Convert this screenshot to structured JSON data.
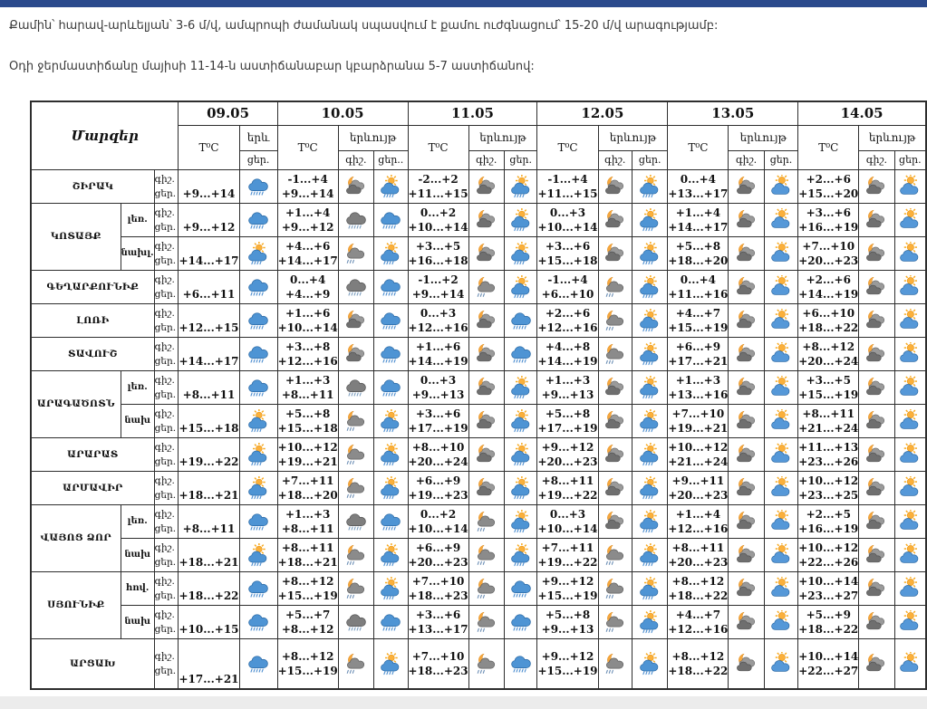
{
  "colors": {
    "top_bar": "#2b4a8c",
    "table_border": "#2e2e2e",
    "text": "#3a3a3a",
    "bottom_strip": "#ececec"
  },
  "intro": {
    "line1": "Քամին՝ հարավ-արևելյան՝ 3-6 մ/վ, ամպրոպի ժամանակ սպասվում է քամու ուժգնացում՝ 15-20 մ/վ արագությամբ:",
    "line2": "Օդի ջերմաստիճանը մայիսի 11-14-ն աստիճանաբար կբարձրանա 5-7 աստիճանով:"
  },
  "header": {
    "corner": "Մարզեր",
    "temp": "T⁰C",
    "phenomenon": "երևույթ",
    "phenomenon_short": "երև",
    "night": "գիշ.",
    "day": "ցեր.",
    "day_dotted": "ցեր..",
    "row_night": "գիշ.",
    "row_day": "ցեր."
  },
  "dates": [
    "09.05",
    "10.05",
    "11.05",
    "12.05",
    "13.05",
    "14.05"
  ],
  "icon_legend": {
    "rain": "blue cloud with rain",
    "dark-rain": "dark grey cloud with rain",
    "moon-cloud": "moon behind dark clouds",
    "moon-cloud-rain": "moon behind dark cloud with rain",
    "sun-rain-cloud": "sun behind cloud with rain",
    "sun-cloud": "sun behind cloud (partly cloudy)"
  },
  "regions": [
    {
      "name": "ՇԻՐԱԿ",
      "rows": [
        {
          "sub": "",
          "first": {
            "t": "+9...+14",
            "icon": "rain"
          },
          "days": [
            {
              "tn": "-1...+4",
              "td": "+9...+14",
              "ni": "moon-cloud",
              "di": "sun-rain-cloud"
            },
            {
              "tn": "-2...+2",
              "td": "+11...+15",
              "ni": "moon-cloud",
              "di": "sun-rain-cloud"
            },
            {
              "tn": "-1...+4",
              "td": "+11...+15",
              "ni": "moon-cloud",
              "di": "sun-rain-cloud"
            },
            {
              "tn": "0...+4",
              "td": "+13...+17",
              "ni": "moon-cloud",
              "di": "sun-cloud"
            },
            {
              "tn": "+2...+6",
              "td": "+15...+20",
              "ni": "moon-cloud",
              "di": "sun-cloud"
            }
          ]
        }
      ]
    },
    {
      "name": "ԿՈՏԱՅՔ",
      "rows": [
        {
          "sub": "լեռ.",
          "first": {
            "t": "+9...+12",
            "icon": "rain"
          },
          "days": [
            {
              "tn": "+1...+4",
              "td": "+9...+12",
              "ni": "dark-rain",
              "di": "rain"
            },
            {
              "tn": "0...+2",
              "td": "+10...+14",
              "ni": "moon-cloud",
              "di": "sun-rain-cloud"
            },
            {
              "tn": "0...+3",
              "td": "+10...+14",
              "ni": "moon-cloud",
              "di": "sun-rain-cloud"
            },
            {
              "tn": "+1...+4",
              "td": "+14...+17",
              "ni": "moon-cloud",
              "di": "sun-cloud"
            },
            {
              "tn": "+3...+6",
              "td": "+16...+19",
              "ni": "moon-cloud",
              "di": "sun-cloud"
            }
          ]
        },
        {
          "sub": "նախլ.",
          "first": {
            "t": "+14...+17",
            "icon": "sun-rain-cloud"
          },
          "days": [
            {
              "tn": "+4...+6",
              "td": "+14...+17",
              "ni": "moon-cloud-rain",
              "di": "sun-rain-cloud"
            },
            {
              "tn": "+3...+5",
              "td": "+16...+18",
              "ni": "moon-cloud",
              "di": "sun-rain-cloud"
            },
            {
              "tn": "+3...+6",
              "td": "+15...+18",
              "ni": "moon-cloud",
              "di": "sun-rain-cloud"
            },
            {
              "tn": "+5...+8",
              "td": "+18...+20",
              "ni": "moon-cloud",
              "di": "sun-cloud"
            },
            {
              "tn": "+7...+10",
              "td": "+20...+23",
              "ni": "moon-cloud",
              "di": "sun-cloud"
            }
          ]
        }
      ]
    },
    {
      "name": "ԳԵՂԱՐՔՈՒՆԻՔ",
      "rows": [
        {
          "sub": "",
          "first": {
            "t": "+6...+11",
            "icon": "rain"
          },
          "days": [
            {
              "tn": "0...+4",
              "td": "+4...+9",
              "ni": "dark-rain",
              "di": "rain"
            },
            {
              "tn": "-1...+2",
              "td": "+9...+14",
              "ni": "moon-cloud-rain",
              "di": "sun-rain-cloud"
            },
            {
              "tn": "-1...+4",
              "td": "+6...+10",
              "ni": "moon-cloud-rain",
              "di": "sun-rain-cloud"
            },
            {
              "tn": "0...+4",
              "td": "+11...+16",
              "ni": "moon-cloud",
              "di": "sun-cloud"
            },
            {
              "tn": "+2...+6",
              "td": "+14...+19",
              "ni": "moon-cloud",
              "di": "sun-cloud"
            }
          ]
        }
      ]
    },
    {
      "name": "ԼՈՌԻ",
      "rows": [
        {
          "sub": "",
          "first": {
            "t": "+12...+15",
            "icon": "rain"
          },
          "days": [
            {
              "tn": "+1...+6",
              "td": "+10...+14",
              "ni": "moon-cloud",
              "di": "rain"
            },
            {
              "tn": "0...+3",
              "td": "+12...+16",
              "ni": "moon-cloud",
              "di": "rain"
            },
            {
              "tn": "+2...+6",
              "td": "+12...+16",
              "ni": "moon-cloud-rain",
              "di": "sun-rain-cloud"
            },
            {
              "tn": "+4...+7",
              "td": "+15...+19",
              "ni": "moon-cloud",
              "di": "sun-cloud"
            },
            {
              "tn": "+6...+10",
              "td": "+18...+22",
              "ni": "moon-cloud",
              "di": "sun-cloud"
            }
          ]
        }
      ]
    },
    {
      "name": "ՏԱՎՈՒՇ",
      "rows": [
        {
          "sub": "",
          "first": {
            "t": "+14...+17",
            "icon": "rain"
          },
          "days": [
            {
              "tn": "+3...+8",
              "td": "+12...+16",
              "ni": "moon-cloud",
              "di": "rain"
            },
            {
              "tn": "+1...+6",
              "td": "+14...+19",
              "ni": "moon-cloud",
              "di": "rain"
            },
            {
              "tn": "+4...+8",
              "td": "+14...+19",
              "ni": "moon-cloud-rain",
              "di": "sun-rain-cloud"
            },
            {
              "tn": "+6...+9",
              "td": "+17...+21",
              "ni": "moon-cloud",
              "di": "sun-cloud"
            },
            {
              "tn": "+8...+12",
              "td": "+20...+24",
              "ni": "moon-cloud",
              "di": "sun-cloud"
            }
          ]
        }
      ]
    },
    {
      "name": "ԱՐԱԳԱԾՈՏՆ",
      "rows": [
        {
          "sub": "լեռ.",
          "first": {
            "t": "+8...+11",
            "icon": "rain"
          },
          "days": [
            {
              "tn": "+1...+3",
              "td": "+8...+11",
              "ni": "dark-rain",
              "di": "rain"
            },
            {
              "tn": "0...+3",
              "td": "+9...+13",
              "ni": "moon-cloud",
              "di": "sun-rain-cloud"
            },
            {
              "tn": "+1...+3",
              "td": "+9...+13",
              "ni": "moon-cloud",
              "di": "sun-rain-cloud"
            },
            {
              "tn": "+1...+3",
              "td": "+13...+16",
              "ni": "moon-cloud",
              "di": "sun-cloud"
            },
            {
              "tn": "+3...+5",
              "td": "+15...+19",
              "ni": "moon-cloud",
              "di": "sun-cloud"
            }
          ]
        },
        {
          "sub": "նախ",
          "first": {
            "t": "+15...+18",
            "icon": "sun-rain-cloud"
          },
          "days": [
            {
              "tn": "+5...+8",
              "td": "+15...+18",
              "ni": "moon-cloud-rain",
              "di": "sun-rain-cloud"
            },
            {
              "tn": "+3...+6",
              "td": "+17...+19",
              "ni": "moon-cloud",
              "di": "sun-rain-cloud"
            },
            {
              "tn": "+5...+8",
              "td": "+17...+19",
              "ni": "moon-cloud",
              "di": "sun-rain-cloud"
            },
            {
              "tn": "+7...+10",
              "td": "+19...+21",
              "ni": "moon-cloud",
              "di": "sun-cloud"
            },
            {
              "tn": "+8...+11",
              "td": "+21...+24",
              "ni": "moon-cloud",
              "di": "sun-cloud"
            }
          ]
        }
      ]
    },
    {
      "name": "ԱՐԱՐԱՏ",
      "rows": [
        {
          "sub": "",
          "first": {
            "t": "+19...+22",
            "icon": "sun-rain-cloud"
          },
          "days": [
            {
              "tn": "+10...+12",
              "td": "+19...+21",
              "ni": "moon-cloud-rain",
              "di": "sun-rain-cloud"
            },
            {
              "tn": "+8...+10",
              "td": "+20...+24",
              "ni": "moon-cloud",
              "di": "sun-rain-cloud"
            },
            {
              "tn": "+9...+12",
              "td": "+20...+23",
              "ni": "moon-cloud",
              "di": "sun-rain-cloud"
            },
            {
              "tn": "+10...+12",
              "td": "+21...+24",
              "ni": "moon-cloud",
              "di": "sun-cloud"
            },
            {
              "tn": "+11...+13",
              "td": "+23...+26",
              "ni": "moon-cloud",
              "di": "sun-cloud"
            }
          ]
        }
      ]
    },
    {
      "name": "ԱՐՄԱՎԻՐ",
      "rows": [
        {
          "sub": "",
          "first": {
            "t": "+18...+21",
            "icon": "sun-rain-cloud"
          },
          "days": [
            {
              "tn": "+7...+11",
              "td": "+18...+20",
              "ni": "moon-cloud-rain",
              "di": "sun-rain-cloud"
            },
            {
              "tn": "+6...+9",
              "td": "+19...+23",
              "ni": "moon-cloud",
              "di": "sun-rain-cloud"
            },
            {
              "tn": "+8...+11",
              "td": "+19...+22",
              "ni": "moon-cloud",
              "di": "sun-rain-cloud"
            },
            {
              "tn": "+9...+11",
              "td": "+20...+23",
              "ni": "moon-cloud",
              "di": "sun-cloud"
            },
            {
              "tn": "+10...+12",
              "td": "+23...+25",
              "ni": "moon-cloud",
              "di": "sun-cloud"
            }
          ]
        }
      ]
    },
    {
      "name": "ՎԱՅՈՑ ՁՈՐ",
      "rows": [
        {
          "sub": "լեռ.",
          "first": {
            "t": "+8...+11",
            "icon": "rain"
          },
          "days": [
            {
              "tn": "+1...+3",
              "td": "+8...+11",
              "ni": "dark-rain",
              "di": "rain"
            },
            {
              "tn": "0...+2",
              "td": "+10...+14",
              "ni": "moon-cloud-rain",
              "di": "sun-rain-cloud"
            },
            {
              "tn": "0...+3",
              "td": "+10...+14",
              "ni": "moon-cloud",
              "di": "sun-rain-cloud"
            },
            {
              "tn": "+1...+4",
              "td": "+12...+16",
              "ni": "moon-cloud",
              "di": "sun-cloud"
            },
            {
              "tn": "+2...+5",
              "td": "+16...+19",
              "ni": "moon-cloud",
              "di": "sun-cloud"
            }
          ]
        },
        {
          "sub": "նախ",
          "first": {
            "t": "+18...+21",
            "icon": "sun-rain-cloud"
          },
          "days": [
            {
              "tn": "+8...+11",
              "td": "+18...+21",
              "ni": "moon-cloud-rain",
              "di": "sun-rain-cloud"
            },
            {
              "tn": "+6...+9",
              "td": "+20...+23",
              "ni": "moon-cloud-rain",
              "di": "sun-rain-cloud"
            },
            {
              "tn": "+7...+11",
              "td": "+19...+22",
              "ni": "moon-cloud-rain",
              "di": "sun-rain-cloud"
            },
            {
              "tn": "+8...+11",
              "td": "+20...+23",
              "ni": "moon-cloud",
              "di": "sun-cloud"
            },
            {
              "tn": "+10...+12",
              "td": "+22...+26",
              "ni": "moon-cloud",
              "di": "sun-cloud"
            }
          ]
        }
      ]
    },
    {
      "name": "ՍՅՈՒՆԻՔ",
      "rows": [
        {
          "sub": "հով.",
          "first": {
            "t": "+18...+22",
            "icon": "rain"
          },
          "days": [
            {
              "tn": "+8...+12",
              "td": "+15...+19",
              "ni": "moon-cloud-rain",
              "di": "sun-rain-cloud"
            },
            {
              "tn": "+7...+10",
              "td": "+18...+23",
              "ni": "moon-cloud-rain",
              "di": "rain"
            },
            {
              "tn": "+9...+12",
              "td": "+15...+19",
              "ni": "moon-cloud-rain",
              "di": "sun-rain-cloud"
            },
            {
              "tn": "+8...+12",
              "td": "+18...+22",
              "ni": "moon-cloud",
              "di": "sun-cloud"
            },
            {
              "tn": "+10...+14",
              "td": "+23...+27",
              "ni": "moon-cloud",
              "di": "sun-cloud"
            }
          ]
        },
        {
          "sub": "նախ",
          "first": {
            "t": "+10...+15",
            "icon": "rain"
          },
          "days": [
            {
              "tn": "+5...+7",
              "td": "+8...+12",
              "ni": "dark-rain",
              "di": "rain"
            },
            {
              "tn": "+3...+6",
              "td": "+13...+17",
              "ni": "moon-cloud-rain",
              "di": "rain"
            },
            {
              "tn": "+5...+8",
              "td": "+9...+13",
              "ni": "moon-cloud-rain",
              "di": "sun-rain-cloud"
            },
            {
              "tn": "+4...+7",
              "td": "+12...+16",
              "ni": "moon-cloud",
              "di": "sun-cloud"
            },
            {
              "tn": "+5...+9",
              "td": "+18...+22",
              "ni": "moon-cloud",
              "di": "sun-cloud"
            }
          ]
        }
      ]
    },
    {
      "name": "ԱՐՑԱԽ",
      "tall": true,
      "rows": [
        {
          "sub": "",
          "first": {
            "t": "+17...+21",
            "icon": "rain"
          },
          "days": [
            {
              "tn": "+8...+12",
              "td": "+15...+19",
              "ni": "moon-cloud-rain",
              "di": "sun-rain-cloud"
            },
            {
              "tn": "+7...+10",
              "td": "+18...+23",
              "ni": "moon-cloud-rain",
              "di": "rain"
            },
            {
              "tn": "+9...+12",
              "td": "+15...+19",
              "ni": "moon-cloud-rain",
              "di": "sun-rain-cloud"
            },
            {
              "tn": "+8...+12",
              "td": "+18...+22",
              "ni": "moon-cloud",
              "di": "sun-cloud"
            },
            {
              "tn": "+10...+14",
              "td": "+22...+27",
              "ni": "moon-cloud",
              "di": "sun-cloud"
            }
          ]
        }
      ]
    }
  ]
}
